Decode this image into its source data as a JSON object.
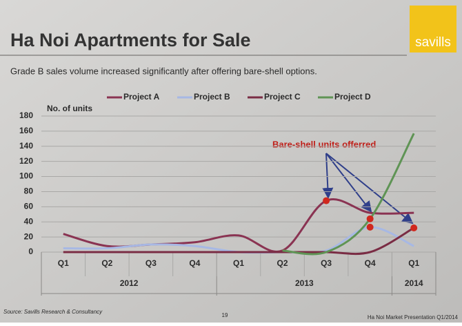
{
  "header": {
    "title": "Ha Noi Apartments for Sale",
    "subtitle": "Grade B sales volume increased significantly after offering bare-shell options.",
    "logo": "savills"
  },
  "footer": {
    "source": "Source: Savills Research & Consultancy",
    "page": "19",
    "note": "Ha Noi Market Presentation Q1/2014"
  },
  "chart_data": {
    "type": "line",
    "y_label": "No. of units",
    "categories": [
      "Q1",
      "Q2",
      "Q3",
      "Q4",
      "Q1",
      "Q2",
      "Q3",
      "Q4",
      "Q1"
    ],
    "year_labels": [
      "2012",
      "2013",
      "2014"
    ],
    "series": [
      {
        "name": "Project A",
        "color": "#8a3352",
        "values": [
          24,
          8,
          10,
          13,
          22,
          2,
          68,
          52,
          52
        ]
      },
      {
        "name": "Project B",
        "color": "#a7b8e4",
        "values": [
          5,
          5,
          10,
          8,
          0,
          0,
          2,
          33,
          8
        ]
      },
      {
        "name": "Project C",
        "color": "#7a2c44",
        "values": [
          0,
          0,
          0,
          0,
          0,
          0,
          0,
          0,
          32
        ]
      },
      {
        "name": "Project D",
        "color": "#5f9455",
        "values": [
          null,
          null,
          null,
          null,
          null,
          2,
          0,
          44,
          157
        ]
      }
    ],
    "annotation": "Bare-shell units offerred",
    "ylim": [
      0,
      180
    ],
    "yticks": [
      0,
      20,
      40,
      60,
      80,
      100,
      120,
      140,
      160,
      180
    ],
    "grid": true
  }
}
